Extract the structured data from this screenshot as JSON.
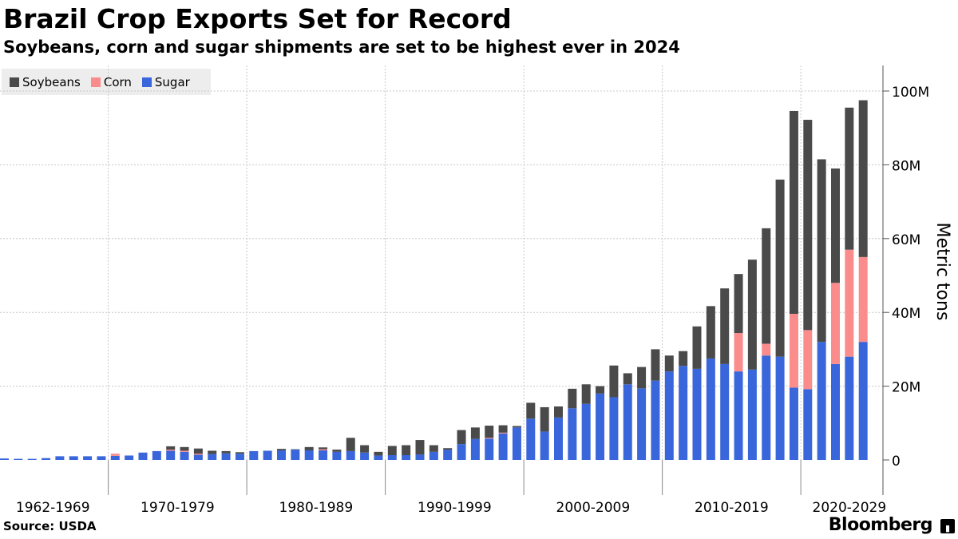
{
  "header": {
    "title": "Brazil Crop Exports Set for Record",
    "subtitle": "Soybeans, corn and sugar shipments are set to be highest ever in 2024"
  },
  "footer": {
    "source": "Source: USDA",
    "brand": "Bloomberg"
  },
  "colors": {
    "soybeans": "#4a4a4a",
    "corn": "#fa8c8c",
    "sugar": "#3a66db"
  },
  "chart_data": {
    "type": "bar",
    "stacked": true,
    "title": "Brazil Crop Exports Set for Record",
    "subtitle": "Soybeans, corn and sugar shipments are set to be highest ever in 2024",
    "xlabel": "",
    "ylabel": "Metric tons",
    "ylim": [
      -8,
      107
    ],
    "y_ticks": [
      0,
      20,
      40,
      60,
      80,
      100
    ],
    "y_tick_labels": [
      "0",
      "20M",
      "40M",
      "60M",
      "80M",
      "100M"
    ],
    "y_unit": "million metric tons",
    "x": [
      1962,
      1963,
      1964,
      1965,
      1966,
      1967,
      1968,
      1969,
      1970,
      1971,
      1972,
      1973,
      1974,
      1975,
      1976,
      1977,
      1978,
      1979,
      1980,
      1981,
      1982,
      1983,
      1984,
      1985,
      1986,
      1987,
      1988,
      1989,
      1990,
      1991,
      1992,
      1993,
      1994,
      1995,
      1996,
      1997,
      1998,
      1999,
      2000,
      2001,
      2002,
      2003,
      2004,
      2005,
      2006,
      2007,
      2008,
      2009,
      2010,
      2011,
      2012,
      2013,
      2014,
      2015,
      2016,
      2017,
      2018,
      2019,
      2020,
      2021,
      2022,
      2023,
      2024
    ],
    "x_tick_labels": [
      "1962-1969",
      "1970-1979",
      "1980-1989",
      "1990-1999",
      "2000-2009",
      "2010-2019",
      "2020-2029"
    ],
    "legend": [
      "Soybeans",
      "Corn",
      "Sugar"
    ],
    "legend_position": "top-left",
    "grid": true,
    "series": [
      {
        "name": "Sugar",
        "values": [
          0.4,
          0.3,
          0.3,
          0.5,
          1.0,
          1.0,
          1.0,
          1.0,
          1.1,
          1.2,
          2.0,
          2.4,
          2.5,
          2.2,
          1.4,
          1.6,
          1.8,
          1.7,
          2.4,
          2.5,
          2.6,
          2.8,
          2.6,
          2.6,
          2.2,
          2.4,
          2.0,
          1.2,
          1.3,
          1.3,
          1.5,
          2.2,
          2.8,
          4.3,
          5.7,
          5.8,
          7.2,
          8.8,
          11.2,
          7.7,
          11.5,
          14.0,
          15.2,
          18.0,
          17.0,
          20.5,
          19.4,
          21.5,
          24.0,
          25.5,
          24.7,
          27.5,
          26.0,
          24.0,
          24.5,
          28.3,
          28.0,
          19.6,
          19.2,
          32.0,
          26.0,
          28.0,
          32.0
        ]
      },
      {
        "name": "Corn",
        "values": [
          0,
          0,
          0,
          0,
          0,
          0,
          0,
          0,
          0.6,
          0,
          0,
          0,
          0.3,
          0.3,
          0.3,
          0,
          0,
          0,
          0,
          0,
          0,
          0,
          0,
          0.3,
          0,
          0,
          0,
          0,
          0,
          0,
          0,
          0,
          0,
          0,
          0,
          0.2,
          0.2,
          0,
          0,
          0,
          0,
          0,
          0,
          0,
          0,
          0,
          0,
          0,
          0,
          0,
          0,
          0,
          0,
          10.4,
          0,
          3.2,
          0,
          20.0,
          16.0,
          0,
          22.0,
          29.0,
          23.0
        ]
      },
      {
        "name": "Soybeans",
        "values": [
          0,
          0,
          0,
          0,
          0,
          0,
          0,
          0,
          0,
          0,
          0,
          0,
          0.9,
          1.0,
          1.4,
          0.9,
          0.6,
          0.4,
          0,
          0,
          0.4,
          0.1,
          0.9,
          0.5,
          0.6,
          3.6,
          2.0,
          1.0,
          2.5,
          2.7,
          3.9,
          1.8,
          0.4,
          3.8,
          3.1,
          3.3,
          2.0,
          0.4,
          4.3,
          6.6,
          3.0,
          5.3,
          5.3,
          2.0,
          8.6,
          3.0,
          5.8,
          8.5,
          4.3,
          4.0,
          11.5,
          14.2,
          20.5,
          16.0,
          29.8,
          31.3,
          48.0,
          55.0,
          57.0,
          49.5,
          31.0,
          38.5,
          42.5
        ]
      }
    ]
  }
}
